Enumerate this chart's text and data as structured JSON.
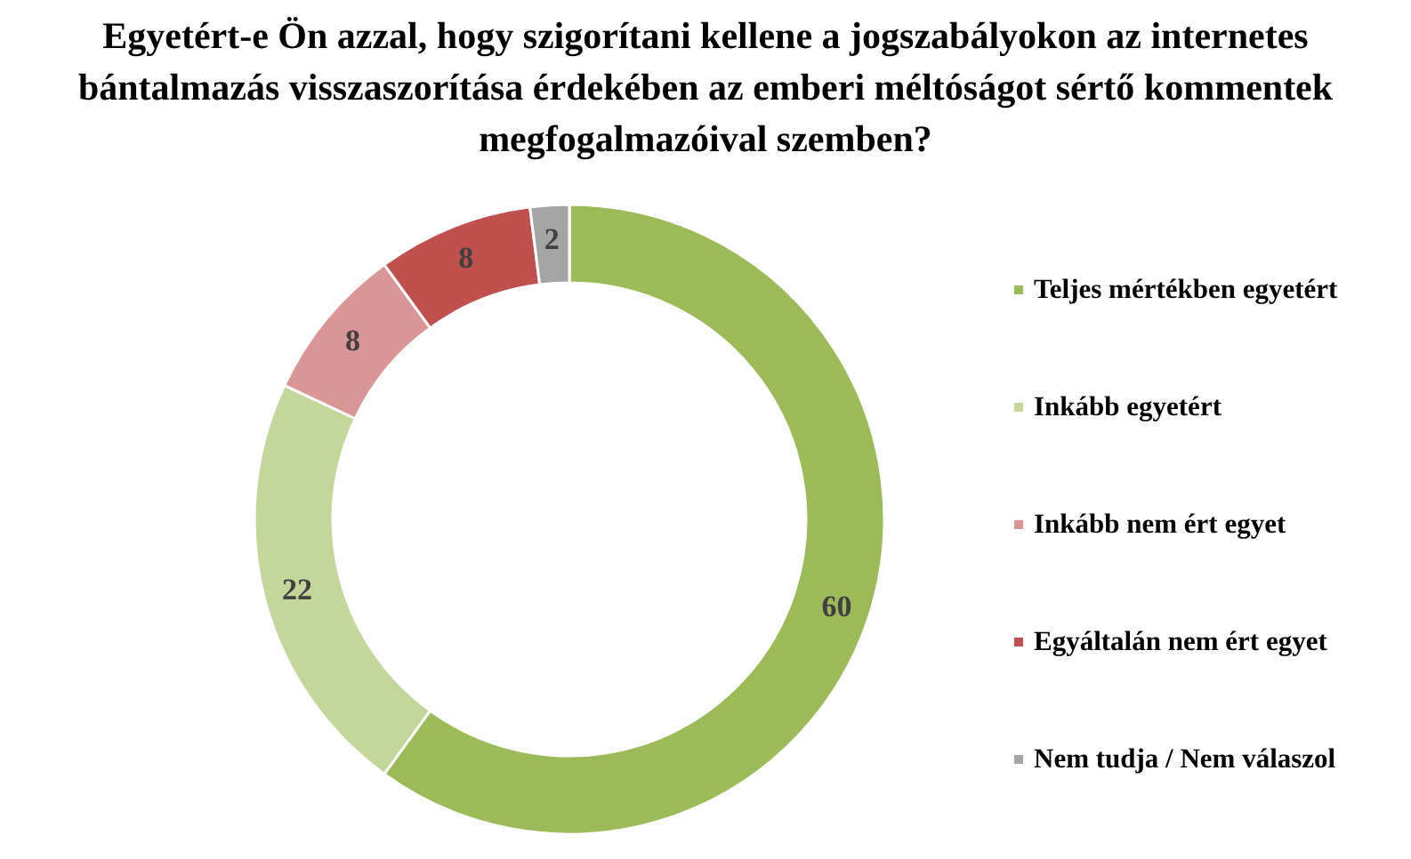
{
  "chart_data": {
    "type": "donut",
    "title": "Egyetért-e Ön azzal, hogy szigorítani kellene a jogszabályokon az internetes bántalmazás visszaszorítása érdekében az emberi méltóságot sértő kommentek megfogalmazóival szemben?",
    "categories": [
      "Teljes mértékben egyetért",
      "Inkább egyetért",
      "Inkább nem ért egyet",
      "Egyáltalán nem ért egyet",
      "Nem tudja / Nem válaszol"
    ],
    "values": [
      60,
      22,
      8,
      8,
      2
    ],
    "colors": [
      "#9bbb59",
      "#c4d79b",
      "#d99694",
      "#c0504d",
      "#a5a5a5"
    ],
    "data_labels": true,
    "legend": "right"
  }
}
